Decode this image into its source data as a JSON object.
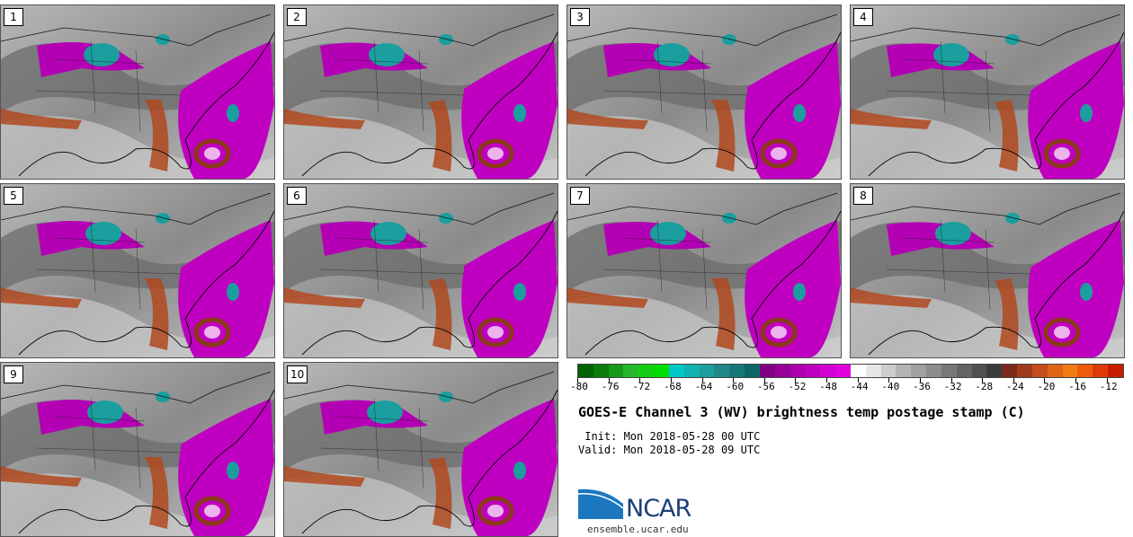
{
  "panels": [
    "1",
    "2",
    "3",
    "4",
    "5",
    "6",
    "7",
    "8",
    "9",
    "10"
  ],
  "colorbar": {
    "colors": [
      "#006400",
      "#0c7d0c",
      "#18991a",
      "#27b72b",
      "#14cc14",
      "#00dd00",
      "#00c8c8",
      "#14b2b2",
      "#1a9e9e",
      "#208888",
      "#177777",
      "#0c6666",
      "#800080",
      "#960096",
      "#ab00ab",
      "#bf00bf",
      "#d200d2",
      "#e000e0",
      "#ffffff",
      "#e6e6e6",
      "#cccccc",
      "#b4b4b4",
      "#a0a0a0",
      "#8c8c8c",
      "#787878",
      "#646464",
      "#505050",
      "#3c3c3c",
      "#7a2a1a",
      "#a03c1c",
      "#c24e1e",
      "#e06418",
      "#f07c14",
      "#ee5a0c",
      "#de3a08",
      "#c81e00"
    ],
    "tick_labels": [
      "-80",
      "-76",
      "-72",
      "-68",
      "-64",
      "-60",
      "-56",
      "-52",
      "-48",
      "-44",
      "-40",
      "-36",
      "-32",
      "-28",
      "-24",
      "-20",
      "-16",
      "-12"
    ],
    "tick_values": [
      -80,
      -76,
      -72,
      -68,
      -64,
      -60,
      -56,
      -52,
      -48,
      -44,
      -40,
      -36,
      -32,
      -28,
      -24,
      -20,
      -16,
      -12
    ],
    "range": [
      -80,
      -10
    ]
  },
  "title": "GOES-E Channel 3 (WV) brightness temp postage stamp (C)",
  "init_line": " Init: Mon 2018-05-28 00 UTC",
  "valid_line": "Valid: Mon 2018-05-28 09 UTC",
  "logo_text": "NCAR",
  "url": "ensemble.ucar.edu"
}
